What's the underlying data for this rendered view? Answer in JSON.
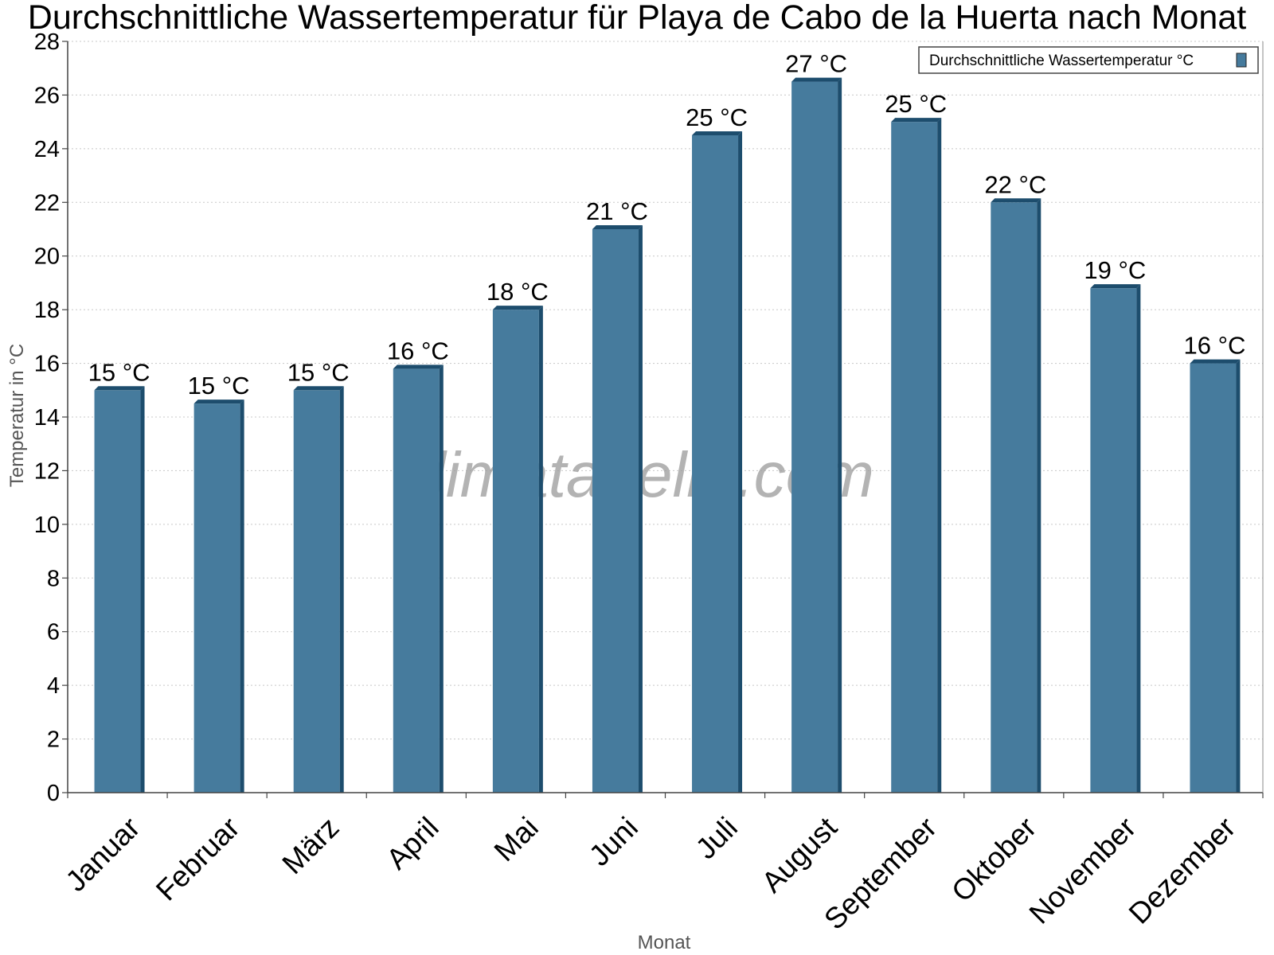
{
  "chart_data": {
    "type": "bar",
    "title": "Durchschnittliche Wassertemperatur für Playa de Cabo de la Huerta nach Monat",
    "xlabel": "Monat",
    "ylabel": "Temperatur in °C",
    "ylim": [
      0,
      28
    ],
    "ytick_step": 2,
    "grid": true,
    "legend_position": "top-right",
    "categories": [
      "Januar",
      "Februar",
      "März",
      "April",
      "Mai",
      "Juni",
      "Juli",
      "August",
      "September",
      "Oktober",
      "November",
      "Dezember"
    ],
    "series": [
      {
        "name": "Durchschnittliche Wassertemperatur °C",
        "color": "#467b9d",
        "shade_color": "#1d4d6d",
        "values": [
          15.0,
          14.5,
          15.0,
          15.8,
          18.0,
          21.0,
          24.5,
          26.5,
          25.0,
          22.0,
          18.8,
          16.0
        ],
        "labels": [
          "15 °C",
          "15 °C",
          "15 °C",
          "16 °C",
          "18 °C",
          "21 °C",
          "25 °C",
          "27 °C",
          "25 °C",
          "22 °C",
          "19 °C",
          "16 °C"
        ]
      }
    ]
  },
  "watermark": "klimatabelle.com"
}
